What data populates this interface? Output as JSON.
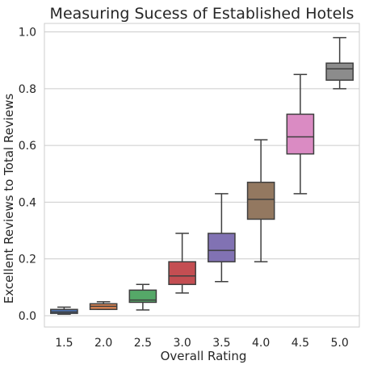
{
  "chart_data": {
    "type": "box",
    "title": "Measuring Sucess of Established Hotels",
    "xlabel": "Overall Rating",
    "ylabel": "Excellent Reviews to Total Reviews",
    "ylim": [
      -0.04,
      1.03
    ],
    "yticks": [
      0.0,
      0.2,
      0.4,
      0.6,
      0.8,
      1.0
    ],
    "ytick_labels": [
      "0.0",
      "0.2",
      "0.4",
      "0.6",
      "0.8",
      "1.0"
    ],
    "grid": "horizontal",
    "categories": [
      "1.5",
      "2.0",
      "2.5",
      "3.0",
      "3.5",
      "4.0",
      "4.5",
      "5.0"
    ],
    "boxes": [
      {
        "whisker_low": 0.005,
        "q1": 0.008,
        "median": 0.013,
        "q3": 0.022,
        "whisker_high": 0.03,
        "color": "#4c72b0"
      },
      {
        "whisker_low": 0.022,
        "q1": 0.022,
        "median": 0.033,
        "q3": 0.042,
        "whisker_high": 0.049,
        "color": "#dd8452"
      },
      {
        "whisker_low": 0.02,
        "q1": 0.047,
        "median": 0.055,
        "q3": 0.09,
        "whisker_high": 0.11,
        "color": "#55a868"
      },
      {
        "whisker_low": 0.08,
        "q1": 0.11,
        "median": 0.14,
        "q3": 0.19,
        "whisker_high": 0.29,
        "color": "#c44e52"
      },
      {
        "whisker_low": 0.12,
        "q1": 0.19,
        "median": 0.23,
        "q3": 0.29,
        "whisker_high": 0.43,
        "color": "#8172b3"
      },
      {
        "whisker_low": 0.19,
        "q1": 0.34,
        "median": 0.41,
        "q3": 0.47,
        "whisker_high": 0.62,
        "color": "#937860"
      },
      {
        "whisker_low": 0.43,
        "q1": 0.57,
        "median": 0.63,
        "q3": 0.71,
        "whisker_high": 0.85,
        "color": "#da8bc3"
      },
      {
        "whisker_low": 0.8,
        "q1": 0.83,
        "median": 0.87,
        "q3": 0.89,
        "whisker_high": 0.98,
        "color": "#8c8c8c"
      }
    ]
  }
}
